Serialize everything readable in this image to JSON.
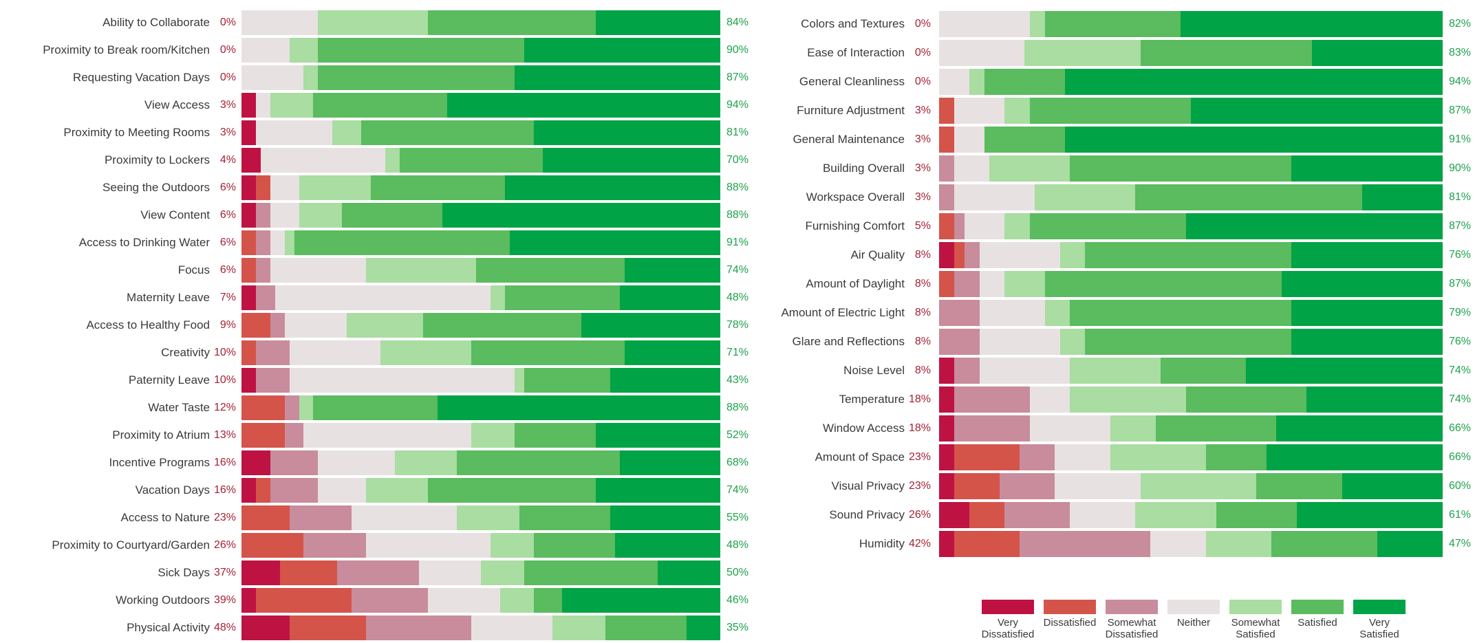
{
  "legend": {
    "items": [
      {
        "label": "Very Dissatisfied",
        "color": "#be1243"
      },
      {
        "label": "Dissatisfied",
        "color": "#d4544a"
      },
      {
        "label": "Somewhat Dissatisfied",
        "color": "#c88c9c"
      },
      {
        "label": "Neither",
        "color": "#e8e1e2"
      },
      {
        "label": "Somewhat Satisfied",
        "color": "#a9dda1"
      },
      {
        "label": "Satisfied",
        "color": "#5abb5f"
      },
      {
        "label": "Very Satisfied",
        "color": "#00a345"
      }
    ]
  },
  "colors": {
    "scale": [
      "#be1243",
      "#d4544a",
      "#c88c9c",
      "#e8e1e2",
      "#a9dda1",
      "#5abb5f",
      "#00a345"
    ],
    "dissatisfied_label_text": "#a51f33",
    "satisfied_label_text": "#1ea14c",
    "row_label_text": "#3a3a3a"
  },
  "chart_data": [
    {
      "type": "bar",
      "variant": "horizontal-stacked-likert",
      "panel": "left",
      "axis": "percent-of-responses 0-100",
      "grid": false,
      "legend_position": "bottom-right-shared",
      "scale_categories": [
        "Very Dissatisfied",
        "Dissatisfied",
        "Somewhat Dissatisfied",
        "Neither",
        "Somewhat Satisfied",
        "Satisfied",
        "Very Satisfied"
      ],
      "rows": [
        {
          "label": "Ability to Collaborate",
          "dissatisfied_pct": "0%",
          "satisfied_pct": "84%",
          "values": [
            0,
            0,
            0,
            16,
            23,
            35,
            26
          ]
        },
        {
          "label": "Proximity to Break room/Kitchen",
          "dissatisfied_pct": "0%",
          "satisfied_pct": "90%",
          "values": [
            0,
            0,
            0,
            10,
            6,
            43,
            41
          ]
        },
        {
          "label": "Requesting Vacation Days",
          "dissatisfied_pct": "0%",
          "satisfied_pct": "87%",
          "values": [
            0,
            0,
            0,
            13,
            3,
            41,
            43
          ]
        },
        {
          "label": "View Access",
          "dissatisfied_pct": "3%",
          "satisfied_pct": "94%",
          "values": [
            3,
            0,
            0,
            3,
            9,
            28,
            57
          ]
        },
        {
          "label": "Proximity to Meeting Rooms",
          "dissatisfied_pct": "3%",
          "satisfied_pct": "81%",
          "values": [
            3,
            0,
            0,
            16,
            6,
            36,
            39
          ]
        },
        {
          "label": "Proximity to Lockers",
          "dissatisfied_pct": "4%",
          "satisfied_pct": "70%",
          "values": [
            4,
            0,
            0,
            26,
            3,
            30,
            37
          ]
        },
        {
          "label": "Seeing the Outdoors",
          "dissatisfied_pct": "6%",
          "satisfied_pct": "88%",
          "values": [
            3,
            3,
            0,
            6,
            15,
            28,
            45
          ]
        },
        {
          "label": "View Content",
          "dissatisfied_pct": "6%",
          "satisfied_pct": "88%",
          "values": [
            3,
            0,
            3,
            6,
            9,
            21,
            58
          ]
        },
        {
          "label": "Access to Drinking Water",
          "dissatisfied_pct": "6%",
          "satisfied_pct": "91%",
          "values": [
            0,
            3,
            3,
            3,
            2,
            45,
            44
          ]
        },
        {
          "label": "Focus",
          "dissatisfied_pct": "6%",
          "satisfied_pct": "74%",
          "values": [
            0,
            3,
            3,
            20,
            23,
            31,
            20
          ]
        },
        {
          "label": "Maternity Leave",
          "dissatisfied_pct": "7%",
          "satisfied_pct": "48%",
          "values": [
            3,
            0,
            4,
            45,
            3,
            24,
            21
          ]
        },
        {
          "label": "Access to Healthy Food",
          "dissatisfied_pct": "9%",
          "satisfied_pct": "78%",
          "values": [
            0,
            6,
            3,
            13,
            16,
            33,
            29
          ]
        },
        {
          "label": "Creativity",
          "dissatisfied_pct": "10%",
          "satisfied_pct": "71%",
          "values": [
            0,
            3,
            7,
            19,
            19,
            32,
            20
          ]
        },
        {
          "label": "Paternity Leave",
          "dissatisfied_pct": "10%",
          "satisfied_pct": "43%",
          "values": [
            3,
            0,
            7,
            47,
            2,
            18,
            23
          ]
        },
        {
          "label": "Water Taste",
          "dissatisfied_pct": "12%",
          "satisfied_pct": "88%",
          "values": [
            0,
            9,
            3,
            0,
            3,
            26,
            59
          ]
        },
        {
          "label": "Proximity to Atrium",
          "dissatisfied_pct": "13%",
          "satisfied_pct": "52%",
          "values": [
            0,
            9,
            4,
            35,
            9,
            17,
            26
          ]
        },
        {
          "label": "Incentive Programs",
          "dissatisfied_pct": "16%",
          "satisfied_pct": "68%",
          "values": [
            6,
            0,
            10,
            16,
            13,
            34,
            21
          ]
        },
        {
          "label": "Vacation Days",
          "dissatisfied_pct": "16%",
          "satisfied_pct": "74%",
          "values": [
            3,
            3,
            10,
            10,
            13,
            35,
            26
          ]
        },
        {
          "label": "Access to Nature",
          "dissatisfied_pct": "23%",
          "satisfied_pct": "55%",
          "values": [
            0,
            10,
            13,
            22,
            13,
            19,
            23
          ]
        },
        {
          "label": "Proximity to Courtyard/Garden",
          "dissatisfied_pct": "26%",
          "satisfied_pct": "48%",
          "values": [
            0,
            13,
            13,
            26,
            9,
            17,
            22
          ]
        },
        {
          "label": "Sick Days",
          "dissatisfied_pct": "37%",
          "satisfied_pct": "50%",
          "values": [
            8,
            12,
            17,
            13,
            9,
            28,
            13
          ]
        },
        {
          "label": "Working Outdoors",
          "dissatisfied_pct": "39%",
          "satisfied_pct": "46%",
          "values": [
            3,
            20,
            16,
            15,
            7,
            6,
            33
          ]
        },
        {
          "label": "Physical Activity",
          "dissatisfied_pct": "48%",
          "satisfied_pct": "35%",
          "values": [
            10,
            16,
            22,
            17,
            11,
            17,
            7
          ]
        }
      ]
    },
    {
      "type": "bar",
      "variant": "horizontal-stacked-likert",
      "panel": "right",
      "axis": "percent-of-responses 0-100",
      "grid": false,
      "legend_position": "bottom-right-shared",
      "scale_categories": [
        "Very Dissatisfied",
        "Dissatisfied",
        "Somewhat Dissatisfied",
        "Neither",
        "Somewhat Satisfied",
        "Satisfied",
        "Very Satisfied"
      ],
      "rows": [
        {
          "label": "Colors and Textures",
          "dissatisfied_pct": "0%",
          "satisfied_pct": "82%",
          "values": [
            0,
            0,
            0,
            18,
            3,
            27,
            52
          ]
        },
        {
          "label": "Ease of Interaction",
          "dissatisfied_pct": "0%",
          "satisfied_pct": "83%",
          "values": [
            0,
            0,
            0,
            17,
            23,
            34,
            26
          ]
        },
        {
          "label": "General Cleanliness",
          "dissatisfied_pct": "0%",
          "satisfied_pct": "94%",
          "values": [
            0,
            0,
            0,
            6,
            3,
            16,
            75
          ]
        },
        {
          "label": "Furniture Adjustment",
          "dissatisfied_pct": "3%",
          "satisfied_pct": "87%",
          "values": [
            0,
            3,
            0,
            10,
            5,
            32,
            50
          ]
        },
        {
          "label": "General Maintenance",
          "dissatisfied_pct": "3%",
          "satisfied_pct": "91%",
          "values": [
            0,
            3,
            0,
            6,
            0,
            16,
            75
          ]
        },
        {
          "label": "Building Overall",
          "dissatisfied_pct": "3%",
          "satisfied_pct": "90%",
          "values": [
            0,
            0,
            3,
            7,
            16,
            44,
            30
          ]
        },
        {
          "label": "Workspace Overall",
          "dissatisfied_pct": "3%",
          "satisfied_pct": "81%",
          "values": [
            0,
            0,
            3,
            16,
            20,
            45,
            16
          ]
        },
        {
          "label": "Furnishing Comfort",
          "dissatisfied_pct": "5%",
          "satisfied_pct": "87%",
          "values": [
            0,
            3,
            2,
            8,
            5,
            31,
            51
          ]
        },
        {
          "label": "Air Quality",
          "dissatisfied_pct": "8%",
          "satisfied_pct": "76%",
          "values": [
            3,
            2,
            3,
            16,
            5,
            41,
            30
          ]
        },
        {
          "label": "Amount of Daylight",
          "dissatisfied_pct": "8%",
          "satisfied_pct": "87%",
          "values": [
            0,
            3,
            5,
            5,
            8,
            47,
            32
          ]
        },
        {
          "label": "Amount of Electric Light",
          "dissatisfied_pct": "8%",
          "satisfied_pct": "79%",
          "values": [
            0,
            0,
            8,
            13,
            5,
            44,
            30
          ]
        },
        {
          "label": "Glare and Reflections",
          "dissatisfied_pct": "8%",
          "satisfied_pct": "76%",
          "values": [
            0,
            0,
            8,
            16,
            5,
            41,
            30
          ]
        },
        {
          "label": "Noise Level",
          "dissatisfied_pct": "8%",
          "satisfied_pct": "74%",
          "values": [
            3,
            0,
            5,
            18,
            18,
            17,
            39
          ]
        },
        {
          "label": "Temperature",
          "dissatisfied_pct": "18%",
          "satisfied_pct": "74%",
          "values": [
            3,
            0,
            15,
            8,
            23,
            24,
            27
          ]
        },
        {
          "label": "Window Access",
          "dissatisfied_pct": "18%",
          "satisfied_pct": "66%",
          "values": [
            3,
            0,
            15,
            16,
            9,
            24,
            33
          ]
        },
        {
          "label": "Amount of Space",
          "dissatisfied_pct": "23%",
          "satisfied_pct": "66%",
          "values": [
            3,
            13,
            7,
            11,
            19,
            12,
            35
          ]
        },
        {
          "label": "Visual Privacy",
          "dissatisfied_pct": "23%",
          "satisfied_pct": "60%",
          "values": [
            3,
            9,
            11,
            17,
            23,
            17,
            20
          ]
        },
        {
          "label": "Sound Privacy",
          "dissatisfied_pct": "26%",
          "satisfied_pct": "61%",
          "values": [
            6,
            7,
            13,
            13,
            16,
            16,
            29
          ]
        },
        {
          "label": "Humidity",
          "dissatisfied_pct": "42%",
          "satisfied_pct": "47%",
          "values": [
            3,
            13,
            26,
            11,
            13,
            21,
            13
          ]
        }
      ]
    }
  ]
}
